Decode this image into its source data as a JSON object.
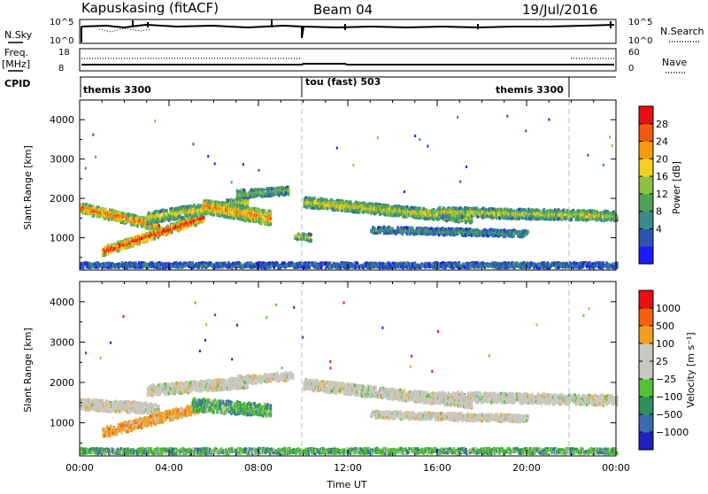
{
  "header": {
    "station": "Kapuskasing (fitACF)",
    "beam": "Beam 04",
    "date": "19/Jul/2016"
  },
  "top_panels": {
    "nsky_label": "N.Sky",
    "nsky_ticks": [
      "10^5",
      "10^0"
    ],
    "nsearch_label": "N.Search",
    "nsearch_ticks": [
      "10^5",
      "10^0"
    ],
    "freq_label": "Freq.",
    "freq_unit": "[MHz]",
    "freq_ticks": [
      "18",
      "8"
    ],
    "nave_label": "Nave",
    "nave_ticks": [
      "60",
      "0"
    ],
    "cpid_label": "CPID",
    "cpid_segments": [
      "themis 3300",
      "tou (fast) 503",
      "themis 3300"
    ]
  },
  "chart_data": [
    {
      "type": "heatmap",
      "panel": "power",
      "ylabel": "Slant Range [km]",
      "xlabel": "",
      "x_ticks": [
        "00:00",
        "04:00",
        "08:00",
        "12:00",
        "16:00",
        "20:00",
        "00:00"
      ],
      "y_ticks": [
        "1000",
        "2000",
        "3000",
        "4000"
      ],
      "xlim_hours": [
        0,
        24
      ],
      "ylim_km": [
        180,
        4500
      ],
      "colorbar": {
        "label": "Power [dB]",
        "ticks": [
          "28",
          "24",
          "20",
          "16",
          "12",
          "8",
          "4"
        ],
        "colors": [
          "#1a1aff",
          "#2b55b0",
          "#3a8a8a",
          "#4ea05a",
          "#8cc040",
          "#f0d020",
          "#f59a10",
          "#ef5a10",
          "#e81010"
        ]
      },
      "bands": [
        {
          "t_start": 0.0,
          "t_end": 3.5,
          "range_start": 1750,
          "range_end": 1300,
          "width": 250,
          "intensity": 0.8
        },
        {
          "t_start": 1.0,
          "t_end": 5.5,
          "range_start": 650,
          "range_end": 1500,
          "width": 220,
          "intensity": 0.95
        },
        {
          "t_start": 3.0,
          "t_end": 7.5,
          "range_start": 1500,
          "range_end": 1900,
          "width": 280,
          "intensity": 0.6
        },
        {
          "t_start": 5.5,
          "t_end": 8.5,
          "range_start": 1800,
          "range_end": 1500,
          "width": 350,
          "intensity": 0.75
        },
        {
          "t_start": 7.0,
          "t_end": 9.3,
          "range_start": 2100,
          "range_end": 2200,
          "width": 200,
          "intensity": 0.45
        },
        {
          "t_start": 9.6,
          "t_end": 10.3,
          "range_start": 1050,
          "range_end": 1000,
          "width": 180,
          "intensity": 0.55
        },
        {
          "t_start": 10.0,
          "t_end": 17.5,
          "range_start": 1900,
          "range_end": 1500,
          "width": 250,
          "intensity": 0.6
        },
        {
          "t_start": 13.0,
          "t_end": 20.0,
          "range_start": 1200,
          "range_end": 1100,
          "width": 160,
          "intensity": 0.35
        },
        {
          "t_start": 16.0,
          "t_end": 24.0,
          "range_start": 1650,
          "range_end": 1550,
          "width": 240,
          "intensity": 0.55
        },
        {
          "t_start": 0.0,
          "t_end": 24.0,
          "range_start": 300,
          "range_end": 300,
          "width": 120,
          "intensity": 0.25
        }
      ]
    },
    {
      "type": "heatmap",
      "panel": "velocity",
      "ylabel": "Slant Range [km]",
      "xlabel": "Time UT",
      "x_ticks": [
        "00:00",
        "04:00",
        "08:00",
        "12:00",
        "16:00",
        "20:00",
        "00:00"
      ],
      "y_ticks": [
        "1000",
        "2000",
        "3000",
        "4000"
      ],
      "xlim_hours": [
        0,
        24
      ],
      "ylim_km": [
        180,
        4500
      ],
      "colorbar": {
        "label": "Velocity [m s⁻¹]",
        "ticks": [
          "1000",
          "500",
          "100",
          "25",
          "−25",
          "−100",
          "−500",
          "−1000"
        ],
        "colors": [
          "#2020c0",
          "#3a6ab0",
          "#2f8f5f",
          "#55c035",
          "#c8c8c0",
          "#c8c8c0",
          "#f0a020",
          "#f06010",
          "#e81010"
        ]
      },
      "bands": [
        {
          "t_start": 0.0,
          "t_end": 3.5,
          "range_start": 1450,
          "range_end": 1350,
          "width": 260,
          "kind": "gray"
        },
        {
          "t_start": 1.0,
          "t_end": 5.5,
          "range_start": 750,
          "range_end": 1400,
          "width": 240,
          "kind": "orange"
        },
        {
          "t_start": 3.0,
          "t_end": 7.5,
          "range_start": 1800,
          "range_end": 2000,
          "width": 260,
          "kind": "gray"
        },
        {
          "t_start": 5.0,
          "t_end": 8.5,
          "range_start": 1450,
          "range_end": 1300,
          "width": 300,
          "kind": "green"
        },
        {
          "t_start": 7.0,
          "t_end": 9.5,
          "range_start": 2050,
          "range_end": 2150,
          "width": 200,
          "kind": "gray"
        },
        {
          "t_start": 10.0,
          "t_end": 17.5,
          "range_start": 1950,
          "range_end": 1500,
          "width": 260,
          "kind": "gray"
        },
        {
          "t_start": 13.0,
          "t_end": 20.0,
          "range_start": 1200,
          "range_end": 1100,
          "width": 170,
          "kind": "gray"
        },
        {
          "t_start": 16.0,
          "t_end": 24.0,
          "range_start": 1650,
          "range_end": 1550,
          "width": 240,
          "kind": "gray"
        },
        {
          "t_start": 0.0,
          "t_end": 24.0,
          "range_start": 300,
          "range_end": 300,
          "width": 120,
          "kind": "green"
        }
      ]
    }
  ]
}
